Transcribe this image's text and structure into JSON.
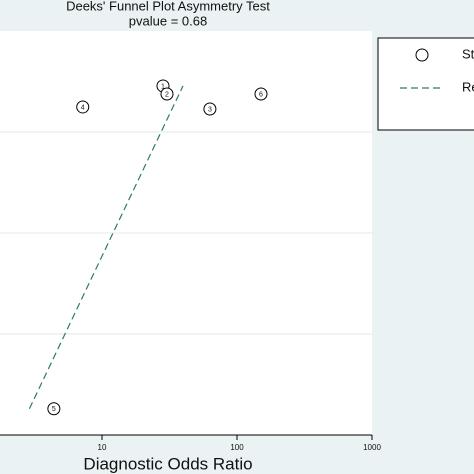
{
  "chart_data": {
    "type": "scatter",
    "title": "Deeks' Funnel Plot Asymmetry Test",
    "subtitle": "pvalue =  0.68",
    "x_label": "Diagnostic Odds Ratio",
    "x_log": true,
    "xlim": [
      1,
      1000
    ],
    "xticks": [
      10,
      100,
      1000
    ],
    "ylim": [
      0,
      0.2
    ],
    "yticks": [
      0.05,
      0.1,
      0.15
    ],
    "grid": true,
    "legend": "right",
    "series": [
      {
        "name": "Study",
        "color": "#000000",
        "labels": [
          "1",
          "2",
          "3",
          "4",
          "5",
          "6"
        ],
        "x": [
          28.3,
          30.3,
          63,
          7.2,
          4.4,
          150.6
        ],
        "values": [
          0.0272,
          0.0312,
          0.0386,
          0.0376,
          0.187,
          0.0312
        ]
      },
      {
        "name": "Regression Line",
        "color": "#2e7d5b",
        "line": true,
        "x": [
          2.9,
          39.8
        ],
        "values": [
          0.187,
          0.0272
        ]
      }
    ]
  }
}
